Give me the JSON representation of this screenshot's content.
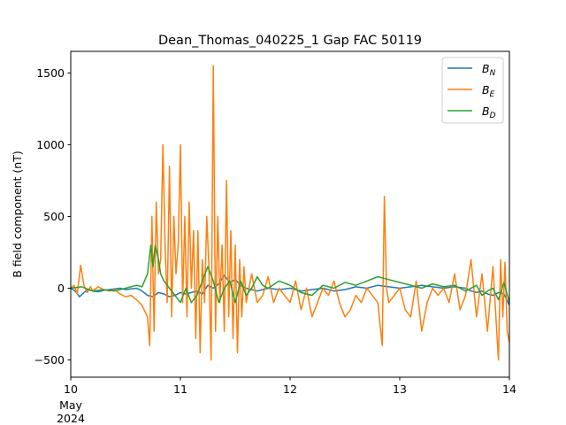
{
  "chart_data": {
    "type": "line",
    "title": "Dean_Thomas_040225_1 Gap FAC 50119",
    "xlabel": "",
    "ylabel": "B field component (nT)",
    "x_axis": {
      "type": "date",
      "range": [
        "2024-05-10",
        "2024-05-14"
      ],
      "ticks": [
        "10",
        "11",
        "12",
        "13",
        "14"
      ],
      "secondary_labels": [
        "May",
        "2024"
      ]
    },
    "ylim": [
      -620,
      1650
    ],
    "y_ticks": [
      -500,
      0,
      500,
      1000,
      1500
    ],
    "y_tick_labels": [
      "−500",
      "0",
      "500",
      "1000",
      "1500"
    ],
    "grid": false,
    "legend": {
      "location": "top-right"
    },
    "colors": {
      "B_N": "#1f77b4",
      "B_E": "#ff7f0e",
      "B_D": "#2ca02c",
      "frame": "#000000"
    },
    "series": [
      {
        "name": "B_N",
        "legend_base": "B",
        "legend_sub": "N",
        "x_days": [
          0,
          0.04,
          0.08,
          0.12,
          0.16,
          0.2,
          0.25,
          0.3,
          0.35,
          0.4,
          0.45,
          0.5,
          0.55,
          0.6,
          0.65,
          0.7,
          0.75,
          0.8,
          0.85,
          0.9,
          0.95,
          1.0,
          1.05,
          1.1,
          1.15,
          1.2,
          1.25,
          1.3,
          1.35,
          1.4,
          1.45,
          1.5,
          1.55,
          1.6,
          1.65,
          1.7,
          1.75,
          1.8,
          1.9,
          2.0,
          2.1,
          2.2,
          2.3,
          2.4,
          2.5,
          2.6,
          2.7,
          2.8,
          2.9,
          3.0,
          3.1,
          3.2,
          3.3,
          3.4,
          3.5,
          3.6,
          3.65,
          3.7,
          3.75,
          3.8,
          3.85,
          3.9,
          3.95,
          4.0
        ],
        "values": [
          0,
          -20,
          -60,
          -30,
          -10,
          -20,
          -25,
          -15,
          -10,
          -5,
          0,
          -10,
          -5,
          0,
          -20,
          -50,
          -60,
          -30,
          -40,
          -60,
          -50,
          -30,
          -40,
          -30,
          -20,
          -40,
          20,
          0,
          30,
          90,
          40,
          60,
          20,
          0,
          -10,
          -20,
          -10,
          0,
          -10,
          0,
          -20,
          -10,
          0,
          -20,
          -10,
          10,
          0,
          20,
          10,
          0,
          10,
          20,
          10,
          0,
          10,
          0,
          -20,
          -30,
          -20,
          -40,
          -50,
          -30,
          -40,
          -120
        ]
      },
      {
        "name": "B_E",
        "legend_base": "B",
        "legend_sub": "E",
        "x_days": [
          0,
          0.03,
          0.06,
          0.09,
          0.12,
          0.15,
          0.18,
          0.2,
          0.25,
          0.3,
          0.35,
          0.4,
          0.45,
          0.5,
          0.55,
          0.6,
          0.65,
          0.7,
          0.72,
          0.74,
          0.76,
          0.78,
          0.8,
          0.82,
          0.84,
          0.86,
          0.88,
          0.9,
          0.92,
          0.94,
          0.96,
          0.98,
          1.0,
          1.02,
          1.04,
          1.06,
          1.08,
          1.1,
          1.12,
          1.14,
          1.16,
          1.18,
          1.2,
          1.22,
          1.24,
          1.26,
          1.28,
          1.3,
          1.32,
          1.34,
          1.36,
          1.38,
          1.4,
          1.42,
          1.44,
          1.46,
          1.48,
          1.5,
          1.52,
          1.54,
          1.56,
          1.58,
          1.6,
          1.65,
          1.7,
          1.75,
          1.8,
          1.85,
          1.9,
          1.95,
          2.0,
          2.05,
          2.1,
          2.15,
          2.2,
          2.25,
          2.3,
          2.35,
          2.4,
          2.45,
          2.5,
          2.55,
          2.6,
          2.65,
          2.7,
          2.75,
          2.8,
          2.84,
          2.86,
          2.88,
          2.9,
          2.95,
          3.0,
          3.05,
          3.1,
          3.15,
          3.2,
          3.25,
          3.3,
          3.35,
          3.4,
          3.45,
          3.5,
          3.55,
          3.6,
          3.65,
          3.7,
          3.75,
          3.8,
          3.85,
          3.9,
          3.92,
          3.94,
          3.96,
          3.98,
          4.0
        ],
        "values": [
          0,
          20,
          -40,
          160,
          20,
          -30,
          10,
          -20,
          10,
          -10,
          -20,
          -10,
          -40,
          -60,
          -50,
          -80,
          -120,
          -200,
          -400,
          500,
          -300,
          600,
          100,
          200,
          1000,
          300,
          -100,
          850,
          -200,
          500,
          100,
          300,
          1000,
          -100,
          500,
          -200,
          600,
          0,
          400,
          -350,
          400,
          -450,
          200,
          -100,
          500,
          150,
          -500,
          1550,
          -300,
          500,
          -100,
          300,
          -300,
          750,
          -200,
          400,
          -350,
          300,
          -450,
          200,
          -200,
          150,
          -100,
          100,
          -100,
          -50,
          80,
          -100,
          0,
          -50,
          -100,
          50,
          -150,
          0,
          -200,
          -100,
          0,
          -50,
          50,
          -100,
          -200,
          -150,
          -50,
          -100,
          0,
          -50,
          -100,
          -400,
          640,
          0,
          -100,
          -50,
          0,
          -150,
          -200,
          50,
          -300,
          -100,
          0,
          -50,
          0,
          -100,
          100,
          -150,
          -50,
          200,
          -200,
          100,
          -300,
          150,
          -500,
          200,
          -200,
          180,
          -300,
          -380
        ]
      },
      {
        "name": "B_D",
        "legend_base": "B",
        "legend_sub": "D",
        "x_days": [
          0,
          0.1,
          0.2,
          0.3,
          0.4,
          0.5,
          0.6,
          0.65,
          0.7,
          0.73,
          0.75,
          0.77,
          0.8,
          0.82,
          0.85,
          0.9,
          0.95,
          1.0,
          1.05,
          1.1,
          1.15,
          1.2,
          1.25,
          1.3,
          1.35,
          1.4,
          1.45,
          1.5,
          1.55,
          1.6,
          1.65,
          1.7,
          1.75,
          1.8,
          1.9,
          2.0,
          2.1,
          2.2,
          2.3,
          2.4,
          2.5,
          2.6,
          2.7,
          2.8,
          2.9,
          3.0,
          3.1,
          3.2,
          3.3,
          3.4,
          3.5,
          3.55,
          3.6,
          3.65,
          3.7,
          3.75,
          3.8,
          3.85,
          3.9,
          3.95,
          4.0
        ],
        "values": [
          0,
          10,
          -20,
          -10,
          -20,
          0,
          20,
          10,
          100,
          300,
          150,
          300,
          200,
          100,
          50,
          0,
          -50,
          -100,
          0,
          -100,
          -50,
          50,
          150,
          50,
          -100,
          0,
          50,
          -100,
          50,
          -50,
          0,
          80,
          20,
          0,
          50,
          20,
          -30,
          -50,
          20,
          0,
          40,
          20,
          50,
          80,
          60,
          40,
          20,
          0,
          30,
          10,
          20,
          0,
          -20,
          0,
          20,
          -50,
          -20,
          0,
          -80,
          40,
          -100
        ]
      }
    ]
  }
}
